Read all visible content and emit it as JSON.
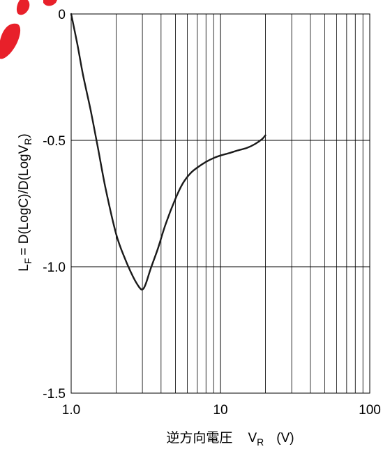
{
  "chart_data": {
    "type": "line",
    "xscale": "log",
    "xlim": [
      1,
      100
    ],
    "ylim": [
      -1.5,
      0
    ],
    "grid": true,
    "x_ticks": [
      {
        "value": 1,
        "label": "1.0"
      },
      {
        "value": 10,
        "label": "10"
      },
      {
        "value": 100,
        "label": "100"
      }
    ],
    "y_ticks": [
      {
        "value": 0,
        "label": "0"
      },
      {
        "value": -0.5,
        "label": "-0.5"
      },
      {
        "value": -1.0,
        "label": "-1.0"
      },
      {
        "value": -1.5,
        "label": "-1.5"
      }
    ],
    "xlabel": {
      "main": "逆方向電圧",
      "var": "V",
      "sub": "R",
      "unit": "(V)"
    },
    "ylabel": {
      "lhs_var": "L",
      "lhs_sub": "F",
      "rhs": "= D(LogC)/D(LogV",
      "rhs_sub": "R",
      "close": ")"
    },
    "series": [
      {
        "x": [
          1.0,
          1.1,
          1.2,
          1.35,
          1.5,
          1.7,
          2.0,
          2.3,
          2.6,
          2.85,
          3.0,
          3.15,
          3.4,
          3.8,
          4.3,
          5.0,
          5.6,
          6.3,
          7.1,
          8.0,
          9.0,
          10.0,
          11.5,
          13.0,
          15.0,
          17.0,
          19.0,
          20.0
        ],
        "y": [
          0.0,
          -0.12,
          -0.24,
          -0.38,
          -0.52,
          -0.69,
          -0.87,
          -0.97,
          -1.04,
          -1.08,
          -1.09,
          -1.07,
          -1.01,
          -0.93,
          -0.83,
          -0.73,
          -0.67,
          -0.63,
          -0.605,
          -0.585,
          -0.57,
          -0.56,
          -0.55,
          -0.54,
          -0.53,
          -0.515,
          -0.495,
          -0.48
        ]
      }
    ],
    "watermark_text": "oo"
  },
  "colors": {
    "axis": "#000000",
    "grid": "#000000",
    "line": "#1a1a1a",
    "watermark": "#e8202a"
  }
}
